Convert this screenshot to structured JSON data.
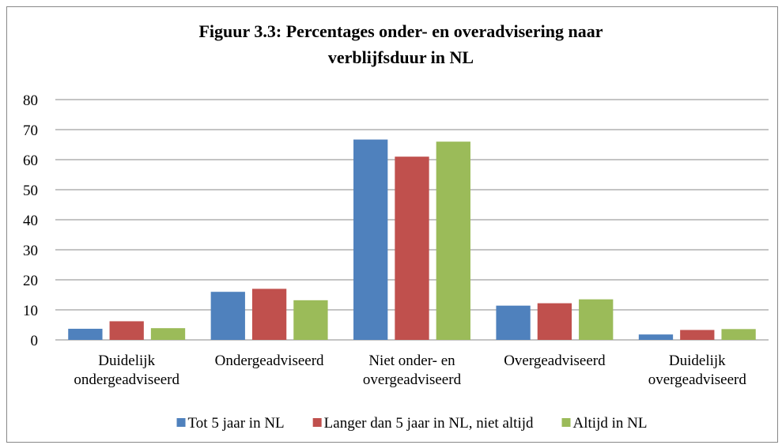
{
  "chart_data": {
    "type": "bar",
    "title": "Figuur 3.3: Percentages onder- en overadvisering naar\nverblijfsduur in NL",
    "categories": [
      "Duidelijk\nondergeadviseerd",
      "Ondergeadviseerd",
      "Niet onder- en\novergeadviseerd",
      "Overgeadviseerd",
      "Duidelijk\novergeadviseerd"
    ],
    "series": [
      {
        "name": "Tot 5 jaar in NL",
        "color": "#4f81bd",
        "values": [
          3.7,
          16,
          66.7,
          11.4,
          1.8
        ]
      },
      {
        "name": "Langer dan 5 jaar in NL, niet altijd",
        "color": "#c0504d",
        "values": [
          6.2,
          17,
          61,
          12.2,
          3.3
        ]
      },
      {
        "name": "Altijd in NL",
        "color": "#9bbb59",
        "values": [
          3.9,
          13.2,
          66,
          13.5,
          3.6
        ]
      }
    ],
    "ylim": [
      0,
      80
    ],
    "yticks": [
      0,
      10,
      20,
      30,
      40,
      50,
      60,
      70,
      80
    ],
    "grid": true,
    "legend": "bottom"
  }
}
